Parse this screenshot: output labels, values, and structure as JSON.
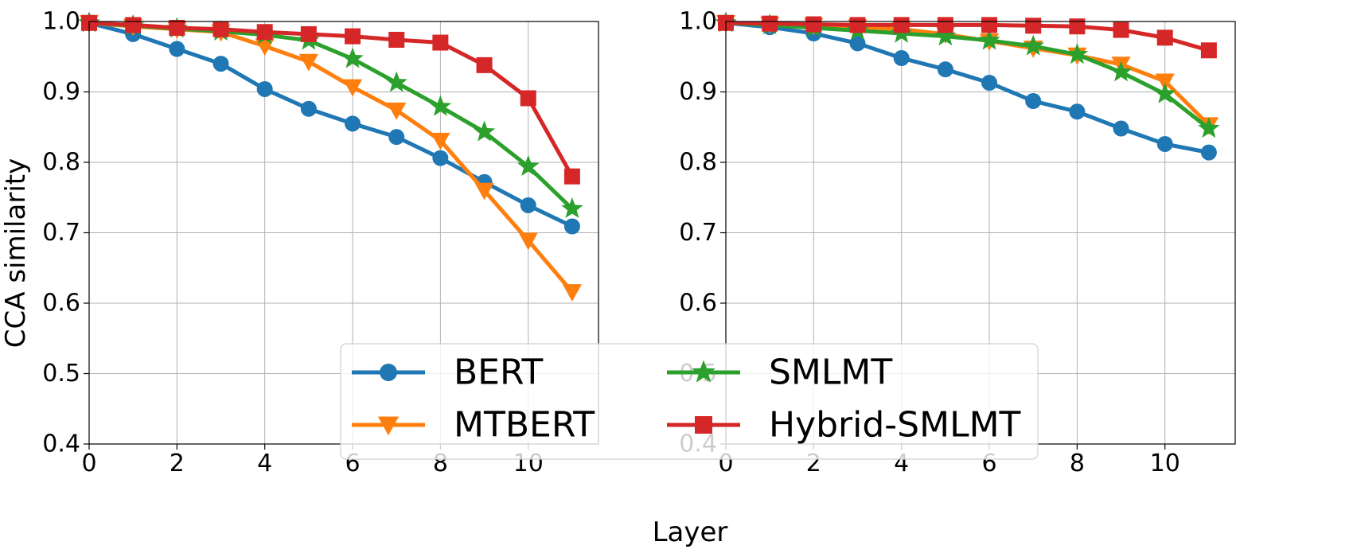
{
  "figure": {
    "ylabel": "CCA similarity",
    "xlabel": "Layer"
  },
  "legend": {
    "items": [
      {
        "label": "BERT",
        "color": "#1f77b4",
        "marker": "circle"
      },
      {
        "label": "SMLMT",
        "color": "#2ca02c",
        "marker": "star"
      },
      {
        "label": "MTBERT",
        "color": "#ff7f0e",
        "marker": "triangle-down"
      },
      {
        "label": "Hybrid-SMLMT",
        "color": "#d62728",
        "marker": "square"
      }
    ]
  },
  "chart_data": [
    {
      "type": "line",
      "title": "",
      "xlabel": "Layer",
      "ylabel": "CCA similarity",
      "xlim": [
        0,
        11.6
      ],
      "ylim": [
        0.4,
        1.0
      ],
      "xticks": [
        "0",
        "2",
        "4",
        "6",
        "8",
        "10"
      ],
      "yticks": [
        "0.4",
        "0.5",
        "0.6",
        "0.7",
        "0.8",
        "0.9",
        "1.0"
      ],
      "grid": true,
      "x": [
        0,
        1,
        2,
        3,
        4,
        5,
        6,
        7,
        8,
        9,
        10,
        11
      ],
      "series": [
        {
          "name": "BERT",
          "color": "#1f77b4",
          "marker": "circle",
          "values": [
            0.998,
            0.982,
            0.961,
            0.94,
            0.904,
            0.876,
            0.855,
            0.836,
            0.806,
            0.772,
            0.739,
            0.709
          ]
        },
        {
          "name": "MTBERT",
          "color": "#ff7f0e",
          "marker": "triangle-down",
          "values": [
            0.998,
            0.993,
            0.989,
            0.985,
            0.965,
            0.943,
            0.907,
            0.874,
            0.831,
            0.76,
            0.689,
            0.616
          ]
        },
        {
          "name": "SMLMT",
          "color": "#2ca02c",
          "marker": "star",
          "values": [
            0.998,
            0.994,
            0.99,
            0.986,
            0.981,
            0.973,
            0.947,
            0.913,
            0.879,
            0.843,
            0.794,
            0.734
          ]
        },
        {
          "name": "Hybrid-SMLMT",
          "color": "#d62728",
          "marker": "square",
          "values": [
            0.998,
            0.995,
            0.991,
            0.989,
            0.985,
            0.982,
            0.979,
            0.974,
            0.97,
            0.938,
            0.891,
            0.78
          ]
        }
      ]
    },
    {
      "type": "line",
      "title": "",
      "xlabel": "Layer",
      "ylabel": "",
      "xlim": [
        0,
        11.6
      ],
      "ylim": [
        0.4,
        1.0
      ],
      "xticks": [
        "0",
        "2",
        "4",
        "6",
        "8",
        "10"
      ],
      "yticks": [
        "0.4",
        "0.5",
        "0.6",
        "0.7",
        "0.8",
        "0.9",
        "1.0"
      ],
      "grid": true,
      "x": [
        0,
        1,
        2,
        3,
        4,
        5,
        6,
        7,
        8,
        9,
        10,
        11
      ],
      "series": [
        {
          "name": "BERT",
          "color": "#1f77b4",
          "marker": "circle",
          "values": [
            0.998,
            0.992,
            0.983,
            0.969,
            0.948,
            0.932,
            0.913,
            0.887,
            0.872,
            0.848,
            0.826,
            0.814
          ]
        },
        {
          "name": "MTBERT",
          "color": "#ff7f0e",
          "marker": "triangle-down",
          "values": [
            0.998,
            0.996,
            0.994,
            0.992,
            0.989,
            0.982,
            0.972,
            0.962,
            0.952,
            0.939,
            0.915,
            0.853
          ]
        },
        {
          "name": "SMLMT",
          "color": "#2ca02c",
          "marker": "star",
          "values": [
            0.998,
            0.995,
            0.991,
            0.987,
            0.983,
            0.979,
            0.973,
            0.965,
            0.953,
            0.928,
            0.897,
            0.848
          ]
        },
        {
          "name": "Hybrid-SMLMT",
          "color": "#d62728",
          "marker": "square",
          "values": [
            0.998,
            0.997,
            0.996,
            0.995,
            0.995,
            0.995,
            0.995,
            0.994,
            0.993,
            0.988,
            0.977,
            0.959
          ]
        }
      ]
    }
  ]
}
